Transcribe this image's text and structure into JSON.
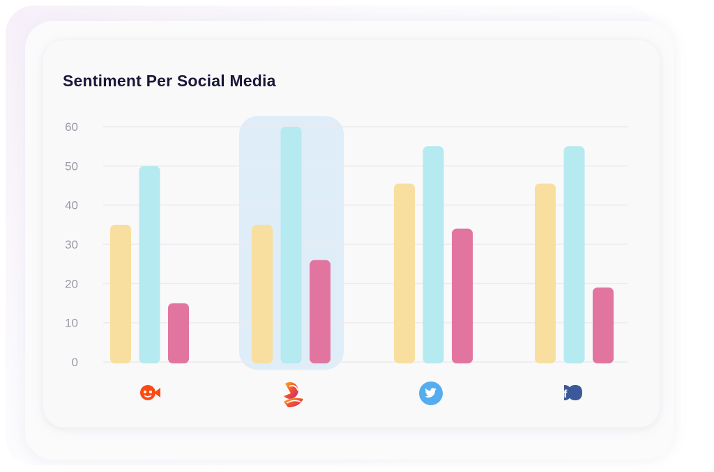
{
  "chart_data": {
    "type": "bar",
    "title": "Sentiment Per Social Media",
    "categories": [
      "Reddit",
      "Instagram",
      "Twitter",
      "Facebook"
    ],
    "category_icons": [
      "reddit-icon",
      "instagram-icon",
      "twitter-icon",
      "facebook-icon"
    ],
    "series": [
      {
        "color": "#f8dfa0",
        "values": [
          35,
          35,
          45.5,
          45.5
        ]
      },
      {
        "color": "#b4eaf0",
        "values": [
          50,
          60,
          55,
          55
        ]
      },
      {
        "color": "#e274a0",
        "values": [
          15,
          26,
          34,
          19
        ]
      }
    ],
    "yticks": [
      "0",
      "10",
      "20",
      "30",
      "40",
      "50",
      "60"
    ],
    "ylim": [
      0,
      60
    ],
    "grid": true,
    "highlighted_category": "Instagram",
    "highlight_color": "#deedf8"
  }
}
